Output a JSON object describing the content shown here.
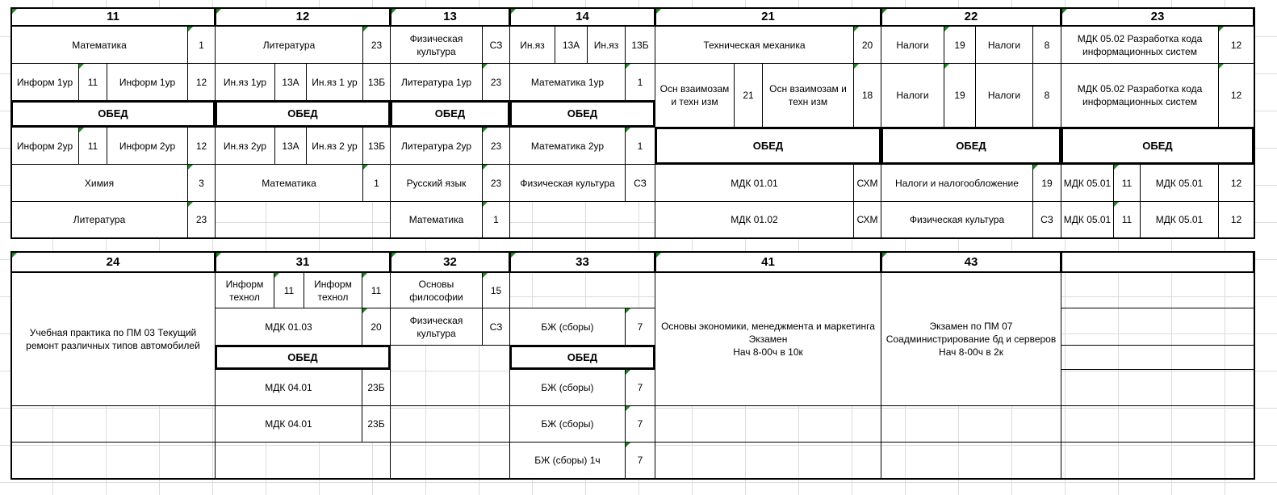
{
  "lunch": "ОБЕД",
  "top": {
    "headers": [
      "11",
      "12",
      "13",
      "14",
      "21",
      "22",
      "23"
    ],
    "g11": [
      "Математика",
      "1",
      "Информ 1ур",
      "11",
      "Информ 1ур",
      "12",
      "Информ 2ур",
      "11",
      "Информ 2ур",
      "12",
      "Химия",
      "3",
      "Литература",
      "23"
    ],
    "g12": [
      "Литература",
      "23",
      "Ин.яз 1ур",
      "13А",
      "Ин.яз 1 ур",
      "13Б",
      "Ин.яз 2ур",
      "13А",
      "Ин.яз 2 ур",
      "13Б",
      "Математика",
      "1"
    ],
    "g13": [
      "Физическая культура",
      "СЗ",
      "Литература  1ур",
      "23",
      "Литература  2ур",
      "23",
      "Русский язык",
      "23",
      "Математика",
      "1"
    ],
    "g14": [
      "Ин.яз",
      "13А",
      "Ин.яз",
      "13Б",
      "Математика 1ур",
      "1",
      "Математика 2ур",
      "1",
      "Физическая культура",
      "СЗ"
    ],
    "g21": [
      "Техническая механика",
      "20",
      "Осн взаимозам и техн изм",
      "21",
      "Осн взаимозам и техн изм",
      "18",
      "МДК 01.01",
      "СХМ",
      "МДК 01.02",
      "СХМ"
    ],
    "g22": [
      "Налоги",
      "19",
      "Налоги",
      "8",
      "Налоги",
      "19",
      "Налоги",
      "8",
      "Налоги и налогообложение",
      "19",
      "Физическая культура",
      "СЗ"
    ],
    "g23": [
      "МДК 05.02 Разработка кода информационных систем",
      "12",
      "МДК 05.02 Разработка кода информационных систем",
      "12",
      "МДК 05.01",
      "11",
      "МДК 05.01",
      "12",
      "МДК 05.01",
      "11",
      "МДК 05.01",
      "12"
    ]
  },
  "bottom": {
    "headers": [
      "24",
      "31",
      "32",
      "33",
      "41",
      "43"
    ],
    "g24": [
      "Учебная практика по ПМ 03 Текущий ремонт различных типов автомобилей"
    ],
    "g31": [
      "Информ технол",
      "11",
      "Информ технол",
      "11",
      "МДК 01.03",
      "20",
      "МДК 04.01",
      "23Б",
      "МДК 04.01",
      "23Б"
    ],
    "g32": [
      "Основы философии",
      "15",
      "Физическая культура",
      "СЗ"
    ],
    "g33": [
      "БЖ (сборы)",
      "7",
      "БЖ (сборы)",
      "7",
      "БЖ (сборы)",
      "7",
      "БЖ (сборы)   1ч",
      "7"
    ],
    "g41": [
      "Основы экономики, менеджмента и маркетинга  Экзамен\nНач 8-00ч в 10к"
    ],
    "g43": [
      "Экзамен по ПМ 07\nСоадминистрирование бд и серверов\nНач 8-00ч в 2к"
    ]
  }
}
